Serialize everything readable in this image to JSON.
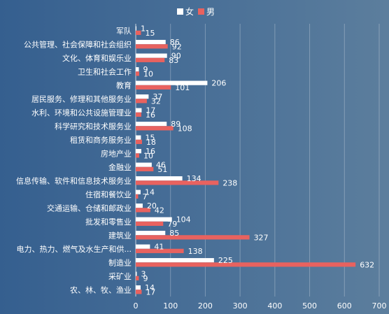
{
  "chart_data": {
    "type": "bar",
    "orientation": "horizontal",
    "categories": [
      "军队",
      "公共管理、社会保障和社会组织",
      "文化、体育和娱乐业",
      "卫生和社会工作",
      "教育",
      "居民服务、修理和其他服务业",
      "水利、环境和公共设施管理业",
      "科学研究和技术服务业",
      "租赁和商务服务业",
      "房地产业",
      "金融业",
      "信息传输、软件和信息技术服务业",
      "住宿和餐饮业",
      "交通运输、仓储和邮政业",
      "批发和零售业",
      "建筑业",
      "电力、热力、燃气及水生产和供...",
      "制造业",
      "采矿业",
      "农、林、牧、渔业"
    ],
    "series": [
      {
        "name": "女",
        "color": "#ffffff",
        "values": [
          1,
          86,
          90,
          9,
          206,
          37,
          17,
          89,
          15,
          16,
          46,
          134,
          14,
          20,
          104,
          85,
          41,
          225,
          3,
          14
        ]
      },
      {
        "name": "男",
        "color": "#e8625f",
        "values": [
          15,
          92,
          83,
          10,
          101,
          32,
          16,
          108,
          18,
          10,
          51,
          238,
          7,
          42,
          79,
          327,
          138,
          632,
          9,
          17
        ]
      }
    ],
    "xlim": [
      0,
      700
    ],
    "xticks": [
      0,
      100,
      200,
      300,
      400,
      500,
      600,
      700
    ],
    "grid": true,
    "legend_position": "top-center",
    "title": "",
    "xlabel": "",
    "ylabel": ""
  }
}
